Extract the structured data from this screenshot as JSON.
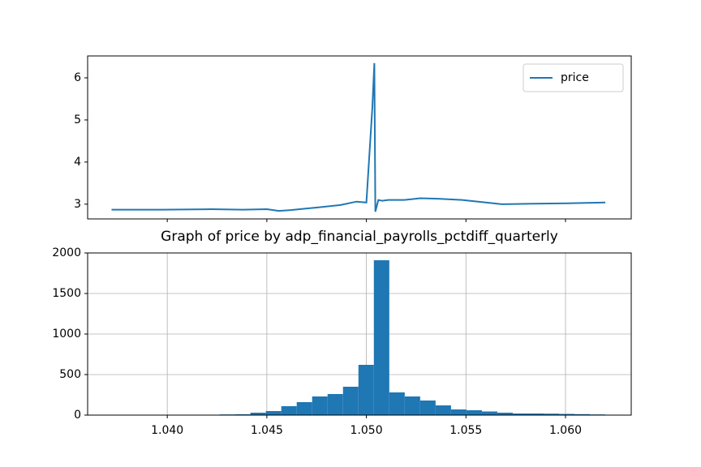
{
  "chart_data": [
    {
      "type": "line",
      "x": [
        1.0372,
        1.0397,
        1.0422,
        1.0438,
        1.045,
        1.0456,
        1.0462,
        1.0475,
        1.0487,
        1.0495,
        1.05,
        1.0503,
        1.0504,
        1.05045,
        1.0506,
        1.0508,
        1.0511,
        1.0519,
        1.0527,
        1.0536,
        1.0548,
        1.056,
        1.0568,
        1.0584,
        1.0601,
        1.062
      ],
      "series": [
        {
          "name": "price",
          "color": "#1f77b4",
          "values": [
            2.87,
            2.87,
            2.88,
            2.87,
            2.88,
            2.84,
            2.86,
            2.92,
            2.98,
            3.06,
            3.04,
            5.3,
            6.35,
            2.82,
            3.1,
            3.08,
            3.1,
            3.1,
            3.14,
            3.13,
            3.1,
            3.04,
            3.0,
            3.01,
            3.02,
            3.04
          ]
        }
      ],
      "xlim": [
        1.036,
        1.0633
      ],
      "ylim": [
        2.65,
        6.52
      ],
      "xticks": [
        {
          "value": 1.04,
          "label": "1.040"
        },
        {
          "value": 1.045,
          "label": "1.045"
        },
        {
          "value": 1.05,
          "label": "1.050"
        },
        {
          "value": 1.055,
          "label": "1.055"
        },
        {
          "value": 1.06,
          "label": "1.060"
        }
      ],
      "yticks": [
        3,
        4,
        5,
        6
      ],
      "legend": "upper right"
    },
    {
      "type": "histogram",
      "title": "Graph of price by adp_financial_payrolls_pctdiff_quarterly",
      "bins": [
        1.0372,
        1.037975,
        1.03875,
        1.039525,
        1.0403,
        1.041075,
        1.04185,
        1.042625,
        1.0434,
        1.044175,
        1.04495,
        1.045725,
        1.0465,
        1.047275,
        1.04805,
        1.048825,
        1.0496,
        1.050375,
        1.05115,
        1.051925,
        1.0527,
        1.053475,
        1.05425,
        1.055025,
        1.0558,
        1.056575,
        1.05735,
        1.058125,
        1.0589,
        1.059675,
        1.06045,
        1.061225,
        1.062
      ],
      "values": [
        0,
        0,
        0,
        0,
        0,
        0,
        5,
        8,
        10,
        30,
        50,
        110,
        160,
        230,
        260,
        350,
        620,
        1910,
        280,
        230,
        180,
        120,
        70,
        60,
        45,
        30,
        20,
        20,
        18,
        15,
        12,
        8
      ],
      "color": "#1f77b4",
      "xlim": [
        1.036,
        1.0633
      ],
      "ylim": [
        0,
        2000
      ],
      "xticks": [
        {
          "value": 1.04,
          "label": "1.040"
        },
        {
          "value": 1.045,
          "label": "1.045"
        },
        {
          "value": 1.05,
          "label": "1.050"
        },
        {
          "value": 1.055,
          "label": "1.055"
        },
        {
          "value": 1.06,
          "label": "1.060"
        }
      ],
      "yticks": [
        0,
        500,
        1000,
        1500,
        2000
      ],
      "grid": true
    }
  ]
}
